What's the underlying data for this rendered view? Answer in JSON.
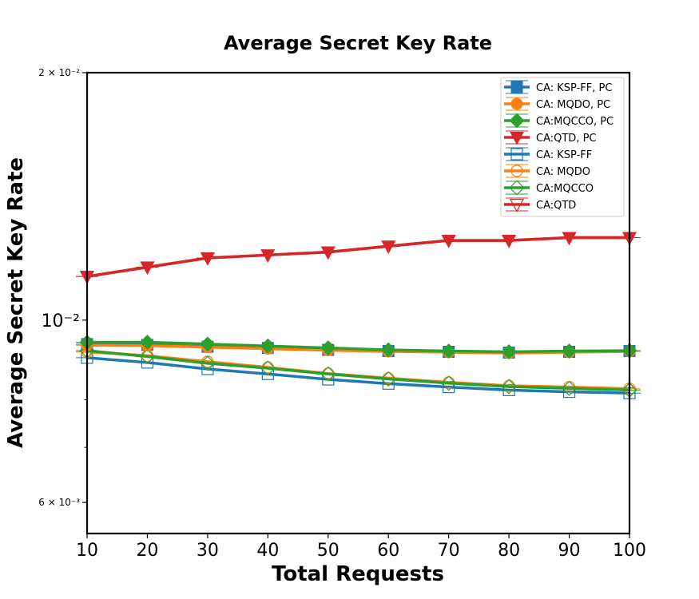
{
  "chart_data": {
    "type": "line",
    "title": "Average Secret Key Rate",
    "xlabel": "Total Requests",
    "ylabel": "Average Secret Key Rate",
    "x": [
      10,
      20,
      30,
      40,
      50,
      60,
      70,
      80,
      90,
      100
    ],
    "xlim": [
      10,
      100
    ],
    "ylim": [
      0.0055,
      0.02
    ],
    "yscale": "log",
    "xticks": [
      "10",
      "20",
      "30",
      "40",
      "50",
      "60",
      "70",
      "80",
      "90",
      "100"
    ],
    "yticks_major": [
      {
        "value": 0.02,
        "label": "2 × 10⁻²",
        "small": true
      },
      {
        "value": 0.01,
        "label": "10⁻²",
        "small": false
      },
      {
        "value": 0.006,
        "label": "6 × 10⁻³",
        "small": true
      }
    ],
    "yticks_minor": [
      0.007,
      0.008,
      0.009
    ],
    "legend_position": "top-right",
    "grid": false,
    "series": [
      {
        "name": "CA: KSP-FF, PC",
        "color": "#1f77b4",
        "marker": "square",
        "filled": true,
        "values": [
          0.00935,
          0.00933,
          0.00928,
          0.00925,
          0.0092,
          0.00917,
          0.00915,
          0.00913,
          0.00915,
          0.00917
        ]
      },
      {
        "name": "CA: MQDO, PC",
        "color": "#ff7f0e",
        "marker": "circle",
        "filled": true,
        "values": [
          0.00932,
          0.00931,
          0.00927,
          0.00923,
          0.00919,
          0.00916,
          0.00914,
          0.00912,
          0.00914,
          0.00916
        ]
      },
      {
        "name": "CA:MQCCO, PC",
        "color": "#2ca02c",
        "marker": "diamond",
        "filled": true,
        "values": [
          0.0094,
          0.0094,
          0.00935,
          0.0093,
          0.00925,
          0.0092,
          0.00917,
          0.00915,
          0.00917,
          0.00918
        ]
      },
      {
        "name": "CA:QTD, PC",
        "color": "#d62728",
        "marker": "triangle-down",
        "filled": true,
        "values": [
          0.0113,
          0.0116,
          0.0119,
          0.012,
          0.0121,
          0.0123,
          0.0125,
          0.0125,
          0.0126,
          0.0126
        ]
      },
      {
        "name": "CA: KSP-FF",
        "color": "#1f77b4",
        "marker": "square",
        "filled": false,
        "values": [
          0.009,
          0.00888,
          0.00872,
          0.0086,
          0.00847,
          0.00837,
          0.00829,
          0.00822,
          0.00818,
          0.00815
        ]
      },
      {
        "name": "CA: MQDO",
        "color": "#ff7f0e",
        "marker": "circle",
        "filled": false,
        "values": [
          0.00915,
          0.00905,
          0.0089,
          0.00876,
          0.00861,
          0.0085,
          0.0084,
          0.00832,
          0.00829,
          0.00825
        ]
      },
      {
        "name": "CA:MQCCO",
        "color": "#2ca02c",
        "marker": "diamond",
        "filled": false,
        "values": [
          0.00918,
          0.00903,
          0.00886,
          0.00874,
          0.0086,
          0.00848,
          0.00838,
          0.0083,
          0.00826,
          0.00822
        ]
      },
      {
        "name": "CA:QTD",
        "color": "#d62728",
        "marker": "triangle-down",
        "filled": false,
        "values": [
          0.0113,
          0.0116,
          0.0119,
          0.012,
          0.0121,
          0.0123,
          0.0125,
          0.0125,
          0.0126,
          0.0126
        ]
      }
    ]
  }
}
